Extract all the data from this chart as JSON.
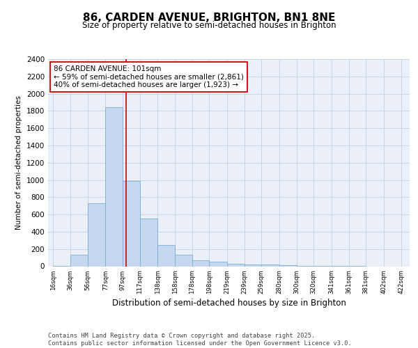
{
  "title_line1": "86, CARDEN AVENUE, BRIGHTON, BN1 8NE",
  "title_line2": "Size of property relative to semi-detached houses in Brighton",
  "xlabel": "Distribution of semi-detached houses by size in Brighton",
  "ylabel": "Number of semi-detached properties",
  "footer_line1": "Contains HM Land Registry data © Crown copyright and database right 2025.",
  "footer_line2": "Contains public sector information licensed under the Open Government Licence v3.0.",
  "bar_left_edges": [
    16,
    36,
    56,
    77,
    97,
    117,
    138,
    158,
    178,
    198,
    219,
    239,
    259,
    280,
    300,
    320,
    341,
    361,
    381,
    402
  ],
  "bar_widths": [
    20,
    20,
    21,
    20,
    20,
    21,
    20,
    20,
    20,
    21,
    20,
    20,
    21,
    20,
    20,
    21,
    20,
    20,
    21,
    20
  ],
  "bar_heights": [
    5,
    130,
    730,
    1845,
    985,
    550,
    248,
    130,
    70,
    50,
    30,
    20,
    18,
    10,
    5,
    3,
    2,
    1,
    0,
    0
  ],
  "bar_color": "#c5d8ef",
  "bar_edgecolor": "#7aaed4",
  "grid_color": "#c8d4e4",
  "background_color": "#eaeff8",
  "plot_bg_color": "#ffffff",
  "red_line_x": 101,
  "red_line_color": "#cc0000",
  "annotation_text_line1": "86 CARDEN AVENUE: 101sqm",
  "annotation_text_line2": "← 59% of semi-detached houses are smaller (2,861)",
  "annotation_text_line3": "40% of semi-detached houses are larger (1,923) →",
  "annotation_box_color": "#ffffff",
  "annotation_box_edgecolor": "#cc0000",
  "tick_labels": [
    "16sqm",
    "36sqm",
    "56sqm",
    "77sqm",
    "97sqm",
    "117sqm",
    "138sqm",
    "158sqm",
    "178sqm",
    "198sqm",
    "219sqm",
    "239sqm",
    "259sqm",
    "280sqm",
    "300sqm",
    "320sqm",
    "341sqm",
    "361sqm",
    "381sqm",
    "402sqm",
    "422sqm"
  ],
  "tick_positions": [
    16,
    36,
    56,
    77,
    97,
    117,
    138,
    158,
    178,
    198,
    219,
    239,
    259,
    280,
    300,
    320,
    341,
    361,
    381,
    402,
    422
  ],
  "ylim": [
    0,
    2400
  ],
  "xlim": [
    10,
    432
  ]
}
